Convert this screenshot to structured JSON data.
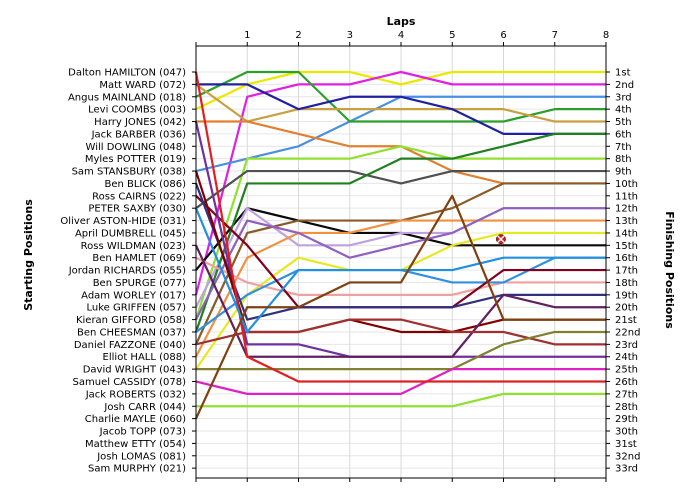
{
  "chart_data": {
    "type": "line",
    "title": "Laps",
    "ylabel_left": "Starting Positions",
    "ylabel_right": "Finishing Positions",
    "laps": [
      "1",
      "2",
      "3",
      "4",
      "5",
      "6",
      "7",
      "8"
    ],
    "drivers": [
      "Dalton HAMILTON (047)",
      "Matt WARD (072)",
      "Angus MAINLAND (018)",
      "Levi COOMBS (003)",
      "Harry JONES (042)",
      "Jack BARBER (036)",
      "Will DOWLING (048)",
      "Myles POTTER (019)",
      "Sam STANSBURY (038)",
      "Ben BLICK (086)",
      "Ross CAIRNS (022)",
      "PETER SAXBY (030)",
      "Oliver ASTON-HIDE (031)",
      "April DUMBRELL (045)",
      "Ross WILDMAN (023)",
      "Ben HAMLET (069)",
      "Jordan RICHARDS (055)",
      "Ben SPURGE (077)",
      "Adam WORLEY (017)",
      "Luke GRIFFEN (057)",
      "Kieran GIFFORD (058)",
      "Ben CHEESMAN (037)",
      "Daniel FAZZONE (040)",
      "Elliot HALL (088)",
      "David WRIGHT (043)",
      "Samuel CASSIDY (078)",
      "Jack ROBERTS (032)",
      "Josh CARR (044)",
      "Charlie MAYLE (060)",
      "Jacob TOPP (073)",
      "Matthew ETTY (054)",
      "Josh LOMAS (081)",
      "Sam MURPHY (021)"
    ],
    "finishing_labels": [
      "1st",
      "2nd",
      "3rd",
      "4th",
      "5th",
      "6th",
      "7th",
      "8th",
      "9th",
      "10th",
      "11th",
      "12th",
      "13th",
      "14th",
      "15th",
      "16th",
      "17th",
      "18th",
      "19th",
      "20th",
      "21st",
      "22nd",
      "23rd",
      "24th",
      "25th",
      "26th",
      "27th",
      "28th",
      "29th",
      "30th",
      "31st",
      "32nd",
      "33rd"
    ],
    "series": [
      {
        "color": "#e8e800",
        "positions": [
          4,
          2,
          1,
          1,
          2,
          1,
          1,
          1
        ]
      },
      {
        "color": "#e020e0",
        "positions": [
          19,
          3,
          2,
          2,
          1,
          2,
          2,
          2
        ]
      },
      {
        "color": "#4a90e0",
        "positions": [
          9,
          8,
          7,
          5,
          3,
          3,
          3,
          3
        ]
      },
      {
        "color": "#2aa02a",
        "positions": [
          3,
          1,
          1,
          5,
          5,
          5,
          5,
          4
        ]
      },
      {
        "color": "#c8a040",
        "positions": [
          2,
          5,
          4,
          4,
          4,
          4,
          4,
          5
        ]
      },
      {
        "color": "#2020a0",
        "positions": [
          2,
          2,
          4,
          3,
          3,
          4,
          6,
          6
        ]
      },
      {
        "color": "#e08030",
        "positions": [
          5,
          5,
          6,
          7,
          7,
          9,
          10,
          10
        ]
      },
      {
        "color": "#90e030",
        "positions": [
          21,
          8,
          8,
          8,
          7,
          8,
          8,
          8
        ]
      },
      {
        "color": "#0a0a0a",
        "positions": [
          17,
          12,
          13,
          14,
          14,
          15,
          15,
          15
        ]
      },
      {
        "color": "#8a5a28",
        "positions": [
          23,
          14,
          13,
          13,
          13,
          12,
          10,
          10
        ]
      },
      {
        "color": "#c0a0e0",
        "positions": [
          20,
          12,
          15,
          15,
          14,
          14,
          12,
          12
        ]
      },
      {
        "color": "#505050",
        "positions": [
          12,
          9,
          9,
          9,
          10,
          9,
          9,
          9
        ]
      },
      {
        "color": "#208020",
        "positions": [
          22,
          10,
          10,
          10,
          8,
          8,
          7,
          6
        ]
      },
      {
        "color": "#e8e820",
        "positions": [
          25,
          19,
          16,
          17,
          17,
          15,
          14,
          14
        ]
      },
      {
        "color": "#f09040",
        "positions": [
          24,
          16,
          14,
          14,
          13,
          13,
          13,
          13
        ]
      },
      {
        "color": "#9060c0",
        "positions": [
          21,
          13,
          14,
          16,
          15,
          14,
          12,
          12
        ]
      },
      {
        "color": "#f0a0a0",
        "positions": [
          16,
          18,
          19,
          19,
          19,
          19,
          18,
          18
        ]
      },
      {
        "color": "#3090e0",
        "positions": [
          22,
          19,
          17,
          17,
          17,
          18,
          18,
          16
        ]
      },
      {
        "color": "#800020",
        "positions": [
          11,
          15,
          20,
          20,
          20,
          20,
          17,
          17
        ]
      },
      {
        "color": "#7030a0",
        "positions": [
          5,
          23,
          23,
          24,
          24,
          24,
          24,
          24
        ]
      },
      {
        "color": "#303080",
        "positions": [
          10,
          21,
          20,
          20,
          20,
          20,
          19,
          19
        ]
      },
      {
        "color": "#800000",
        "positions": [
          9,
          22,
          22,
          21,
          22,
          22,
          21,
          21
        ]
      },
      {
        "color": "#602060",
        "positions": [
          15,
          24,
          24,
          24,
          24,
          24,
          19,
          20
        ]
      },
      {
        "color": "#a03030",
        "positions": [
          23,
          22,
          22,
          21,
          21,
          22,
          22,
          23
        ]
      },
      {
        "color": "#808030",
        "positions": [
          25,
          25,
          25,
          25,
          25,
          25,
          23,
          22
        ]
      },
      {
        "color": "#e020c0",
        "positions": [
          26,
          27,
          27,
          27,
          27,
          25,
          25,
          25
        ]
      },
      {
        "color": "#e02020",
        "positions": [
          1,
          24,
          26,
          26,
          26,
          26,
          26,
          26
        ]
      },
      {
        "color": "#2090e0",
        "positions": [
          12,
          22,
          17,
          17,
          17,
          17,
          16,
          16
        ]
      },
      {
        "color": "#90e030",
        "positions": [
          28,
          28,
          28,
          28,
          28,
          28,
          27,
          27
        ]
      },
      {
        "color": "#804010",
        "positions": [
          29,
          20,
          20,
          18,
          18,
          11,
          21,
          21
        ]
      }
    ],
    "annotations": [
      {
        "marker": "x",
        "lap": "6",
        "position": 14.5,
        "color": "#d02020"
      }
    ],
    "grid": true
  }
}
